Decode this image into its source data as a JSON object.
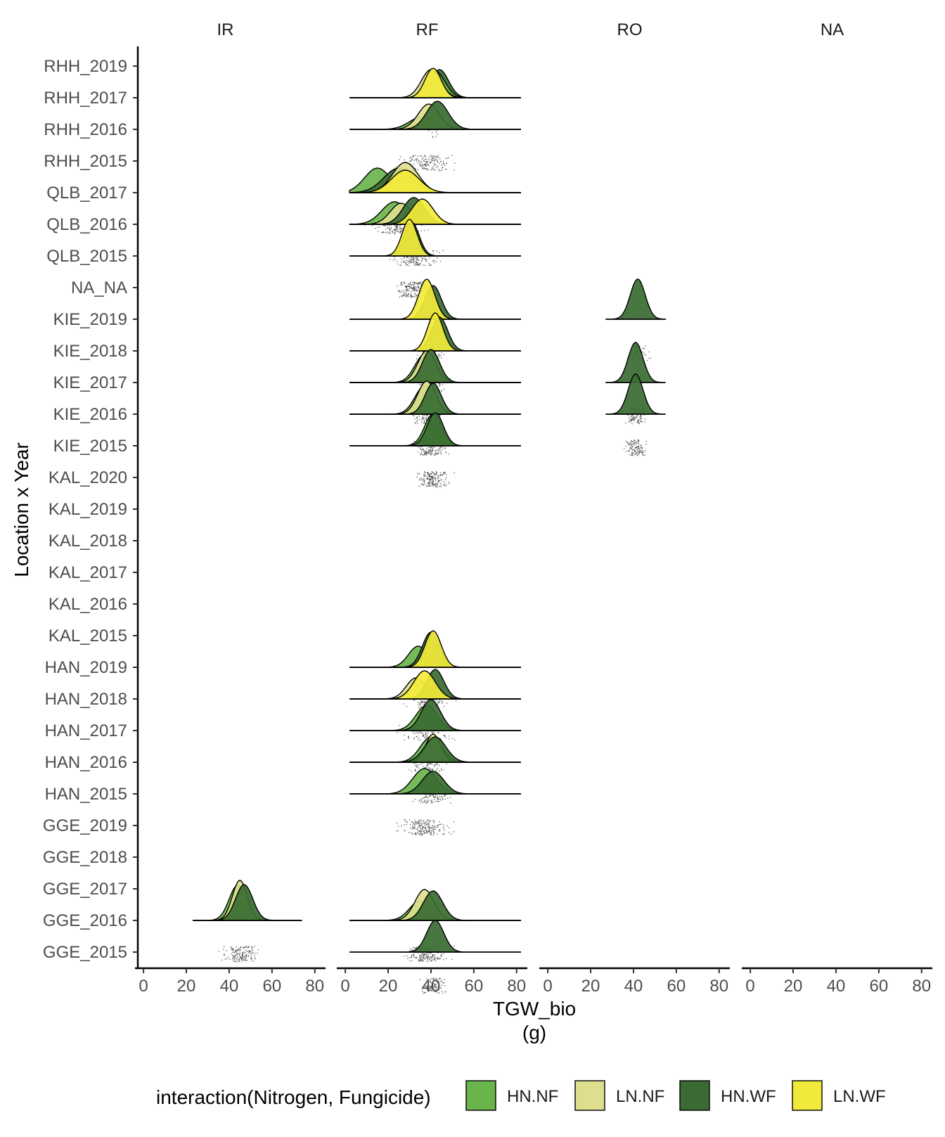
{
  "chart_data": {
    "type": "ridgeline",
    "facets": [
      "IR",
      "RF",
      "RO",
      "NA"
    ],
    "categories": [
      "RHH_2019",
      "RHH_2017",
      "RHH_2016",
      "RHH_2015",
      "QLB_2017",
      "QLB_2016",
      "QLB_2015",
      "NA_NA",
      "KIE_2019",
      "KIE_2018",
      "KIE_2017",
      "KIE_2016",
      "KIE_2015",
      "KAL_2020",
      "KAL_2019",
      "KAL_2018",
      "KAL_2017",
      "KAL_2016",
      "KAL_2015",
      "HAN_2019",
      "HAN_2018",
      "HAN_2017",
      "HAN_2016",
      "HAN_2015",
      "GGE_2019",
      "GGE_2018",
      "GGE_2017",
      "GGE_2016",
      "GGE_2015"
    ],
    "x_ticks": [
      "0",
      "20",
      "40",
      "60",
      "80"
    ],
    "x_range": [
      -2,
      85
    ],
    "xlabel_line1": "TGW_bio",
    "xlabel_line2": "(g)",
    "ylabel": "Location x Year",
    "legend": {
      "title": "interaction(Nitrogen, Fungicide)",
      "placement": "bottom",
      "entries": [
        {
          "label": "HN.NF",
          "color": "#6ab44c"
        },
        {
          "label": "LN.NF",
          "color": "#dedf8e"
        },
        {
          "label": "HN.WF",
          "color": "#3a6b32"
        },
        {
          "label": "LN.WF",
          "color": "#f2ea3a"
        }
      ]
    },
    "ridges": [
      {
        "facet": "RF",
        "baseline": "RHH_2017",
        "range": [
          2,
          82
        ],
        "curves": [
          {
            "group": "HN.WF",
            "mean": 44,
            "sd": 4.2,
            "height": 40
          },
          {
            "group": "HN.NF",
            "mean": 42,
            "sd": 4.5,
            "height": 38
          },
          {
            "group": "LN.NF",
            "mean": 40,
            "sd": 4.5,
            "height": 40
          },
          {
            "group": "LN.WF",
            "mean": 41,
            "sd": 3.8,
            "height": 42
          }
        ]
      },
      {
        "facet": "RF",
        "baseline": "RHH_2016",
        "range": [
          2,
          82
        ],
        "curves": [
          {
            "group": "HN.NF",
            "mean": 36,
            "sd": 6,
            "height": 18
          },
          {
            "group": "LN.NF",
            "mean": 39,
            "sd": 5,
            "height": 36
          },
          {
            "group": "HN.WF",
            "mean": 43,
            "sd": 5,
            "height": 40
          }
        ]
      },
      {
        "facet": "RF",
        "baseline": "QLB_2017",
        "range": [
          2,
          82
        ],
        "curves": [
          {
            "group": "HN.NF",
            "mean": 15,
            "sd": 6,
            "height": 35
          },
          {
            "group": "HN.WF",
            "mean": 25,
            "sd": 7,
            "height": 35
          },
          {
            "group": "LN.NF",
            "mean": 28,
            "sd": 6,
            "height": 43
          },
          {
            "group": "LN.WF",
            "mean": 28,
            "sd": 6.5,
            "height": 32
          }
        ]
      },
      {
        "facet": "RF",
        "baseline": "QLB_2016",
        "range": [
          2,
          82
        ],
        "curves": [
          {
            "group": "HN.NF",
            "mean": 23,
            "sd": 6,
            "height": 32
          },
          {
            "group": "LN.NF",
            "mean": 26,
            "sd": 5,
            "height": 30
          },
          {
            "group": "HN.WF",
            "mean": 32,
            "sd": 5,
            "height": 38
          },
          {
            "group": "LN.WF",
            "mean": 36,
            "sd": 5,
            "height": 36
          }
        ]
      },
      {
        "facet": "RF",
        "baseline": "QLB_2015",
        "range": [
          2,
          82
        ],
        "curves": [
          {
            "group": "HN.WF",
            "mean": 31,
            "sd": 3.5,
            "height": 48
          },
          {
            "group": "LN.WF",
            "mean": 30,
            "sd": 3.5,
            "height": 52
          }
        ]
      },
      {
        "facet": "RF",
        "baseline": "KIE_2019",
        "range": [
          2,
          82
        ],
        "curves": [
          {
            "group": "HN.WF",
            "mean": 41,
            "sd": 3.8,
            "height": 48
          },
          {
            "group": "LN.WF",
            "mean": 38,
            "sd": 3.8,
            "height": 57
          }
        ]
      },
      {
        "facet": "RF",
        "baseline": "KIE_2018",
        "range": [
          2,
          82
        ],
        "curves": [
          {
            "group": "HN.WF",
            "mean": 44,
            "sd": 3.8,
            "height": 48
          },
          {
            "group": "LN.WF",
            "mean": 42,
            "sd": 3.6,
            "height": 54
          }
        ]
      },
      {
        "facet": "RF",
        "baseline": "KIE_2017",
        "range": [
          2,
          82
        ],
        "curves": [
          {
            "group": "HN.NF",
            "mean": 37,
            "sd": 4.5,
            "height": 40
          },
          {
            "group": "LN.NF",
            "mean": 38,
            "sd": 4.2,
            "height": 45
          },
          {
            "group": "HN.WF",
            "mean": 40,
            "sd": 4,
            "height": 47
          }
        ]
      },
      {
        "facet": "RF",
        "baseline": "KIE_2016",
        "range": [
          2,
          82
        ],
        "curves": [
          {
            "group": "HN.NF",
            "mean": 37,
            "sd": 4.5,
            "height": 40
          },
          {
            "group": "LN.NF",
            "mean": 38,
            "sd": 4.2,
            "height": 47
          },
          {
            "group": "HN.WF",
            "mean": 41,
            "sd": 3.8,
            "height": 44
          }
        ]
      },
      {
        "facet": "RF",
        "baseline": "KIE_2015",
        "range": [
          2,
          82
        ],
        "curves": [
          {
            "group": "HN.NF",
            "mean": 41,
            "sd": 4,
            "height": 45
          },
          {
            "group": "HN.WF",
            "mean": 42,
            "sd": 3.8,
            "height": 47
          }
        ]
      },
      {
        "facet": "RF",
        "baseline": "HAN_2019",
        "range": [
          2,
          82
        ],
        "curves": [
          {
            "group": "HN.NF",
            "mean": 34,
            "sd": 4.5,
            "height": 30
          },
          {
            "group": "HN.WF",
            "mean": 40,
            "sd": 4,
            "height": 50
          },
          {
            "group": "LN.WF",
            "mean": 41,
            "sd": 3.8,
            "height": 52
          }
        ]
      },
      {
        "facet": "RF",
        "baseline": "HAN_2018",
        "range": [
          2,
          82
        ],
        "curves": [
          {
            "group": "LN.NF",
            "mean": 33,
            "sd": 4.5,
            "height": 30
          },
          {
            "group": "HN.WF",
            "mean": 42,
            "sd": 4,
            "height": 42
          },
          {
            "group": "LN.WF",
            "mean": 37,
            "sd": 5,
            "height": 40
          }
        ]
      },
      {
        "facet": "RF",
        "baseline": "HAN_2017",
        "range": [
          2,
          82
        ],
        "curves": [
          {
            "group": "HN.NF",
            "mean": 38,
            "sd": 5,
            "height": 36
          },
          {
            "group": "HN.WF",
            "mean": 40,
            "sd": 4.5,
            "height": 44
          }
        ]
      },
      {
        "facet": "RF",
        "baseline": "HAN_2016",
        "range": [
          2,
          82
        ],
        "curves": [
          {
            "group": "HN.NF",
            "mean": 40,
            "sd": 5,
            "height": 36
          },
          {
            "group": "LN.NF",
            "mean": 41,
            "sd": 3.5,
            "height": 40
          },
          {
            "group": "HN.WF",
            "mean": 42,
            "sd": 5,
            "height": 36
          }
        ]
      },
      {
        "facet": "RF",
        "baseline": "HAN_2015",
        "range": [
          2,
          82
        ],
        "curves": [
          {
            "group": "HN.NF",
            "mean": 37,
            "sd": 5.5,
            "height": 36
          },
          {
            "group": "HN.WF",
            "mean": 41,
            "sd": 5,
            "height": 32
          }
        ]
      },
      {
        "facet": "RF",
        "baseline": "GGE_2016",
        "range": [
          2,
          82
        ],
        "curves": [
          {
            "group": "HN.NF",
            "mean": 35,
            "sd": 5,
            "height": 28
          },
          {
            "group": "LN.NF",
            "mean": 37,
            "sd": 4.5,
            "height": 44
          },
          {
            "group": "HN.WF",
            "mean": 41,
            "sd": 4.5,
            "height": 42
          }
        ]
      },
      {
        "facet": "RF",
        "baseline": "GGE_2015",
        "range": [
          2,
          82
        ],
        "curves": [
          {
            "group": "HN.WF",
            "mean": 42,
            "sd": 4,
            "height": 45
          }
        ]
      },
      {
        "facet": "IR",
        "baseline": "GGE_2016",
        "range": [
          23,
          74
        ],
        "curves": [
          {
            "group": "HN.NF",
            "mean": 44,
            "sd": 4,
            "height": 50
          },
          {
            "group": "LN.NF",
            "mean": 45,
            "sd": 3.5,
            "height": 57
          },
          {
            "group": "HN.WF",
            "mean": 47,
            "sd": 4,
            "height": 51
          }
        ]
      },
      {
        "facet": "RO",
        "baseline": "KIE_2019",
        "range": [
          27,
          55
        ],
        "curves": [
          {
            "group": "HN.WF",
            "mean": 42,
            "sd": 3.5,
            "height": 57
          }
        ]
      },
      {
        "facet": "RO",
        "baseline": "KIE_2017",
        "range": [
          27,
          55
        ],
        "curves": [
          {
            "group": "HN.WF",
            "mean": 41,
            "sd": 3.5,
            "height": 57
          }
        ]
      },
      {
        "facet": "RO",
        "baseline": "KIE_2016",
        "range": [
          27,
          55
        ],
        "curves": [
          {
            "group": "HN.WF",
            "mean": 41,
            "sd": 3.5,
            "height": 57
          }
        ]
      }
    ],
    "points": [
      {
        "facet": "RF",
        "row": "RHH_2017",
        "center": 40,
        "spread": 5,
        "n": 18
      },
      {
        "facet": "RF",
        "row": "RHH_2016",
        "center": 38,
        "spread": 10,
        "n": 160
      },
      {
        "facet": "RF",
        "row": "QLB_2017",
        "center": 25,
        "spread": 10,
        "n": 200
      },
      {
        "facet": "RF",
        "row": "QLB_2016",
        "center": 32,
        "spread": 9,
        "n": 170
      },
      {
        "facet": "RF",
        "row": "QLB_2015",
        "center": 31,
        "spread": 6,
        "n": 170
      },
      {
        "facet": "RF",
        "row": "KIE_2019",
        "center": 40,
        "spread": 5,
        "n": 110
      },
      {
        "facet": "RF",
        "row": "KIE_2018",
        "center": 41,
        "spread": 5,
        "n": 110
      },
      {
        "facet": "RF",
        "row": "KIE_2017",
        "center": 38,
        "spread": 6,
        "n": 140
      },
      {
        "facet": "RF",
        "row": "KIE_2016",
        "center": 40,
        "spread": 6,
        "n": 170
      },
      {
        "facet": "RF",
        "row": "KIE_2015",
        "center": 41,
        "spread": 6,
        "n": 180
      },
      {
        "facet": "RF",
        "row": "HAN_2019",
        "center": 38,
        "spread": 8,
        "n": 110
      },
      {
        "facet": "RF",
        "row": "HAN_2018",
        "center": 38,
        "spread": 10,
        "n": 120
      },
      {
        "facet": "RF",
        "row": "HAN_2017",
        "center": 38,
        "spread": 8,
        "n": 130
      },
      {
        "facet": "RF",
        "row": "HAN_2016",
        "center": 40,
        "spread": 7,
        "n": 130
      },
      {
        "facet": "RF",
        "row": "HAN_2015",
        "center": 37,
        "spread": 10,
        "n": 200
      },
      {
        "facet": "RF",
        "row": "GGE_2016",
        "center": 38,
        "spread": 8,
        "n": 200
      },
      {
        "facet": "RF",
        "row": "GGE_2015",
        "center": 41,
        "spread": 5,
        "n": 110
      },
      {
        "facet": "IR",
        "row": "GGE_2016",
        "center": 45,
        "spread": 7,
        "n": 160
      },
      {
        "facet": "RO",
        "row": "KIE_2019",
        "center": 42,
        "spread": 4,
        "n": 60
      },
      {
        "facet": "RO",
        "row": "KIE_2017",
        "center": 41,
        "spread": 4,
        "n": 110
      },
      {
        "facet": "RO",
        "row": "KIE_2016",
        "center": 41,
        "spread": 4,
        "n": 120
      }
    ]
  }
}
